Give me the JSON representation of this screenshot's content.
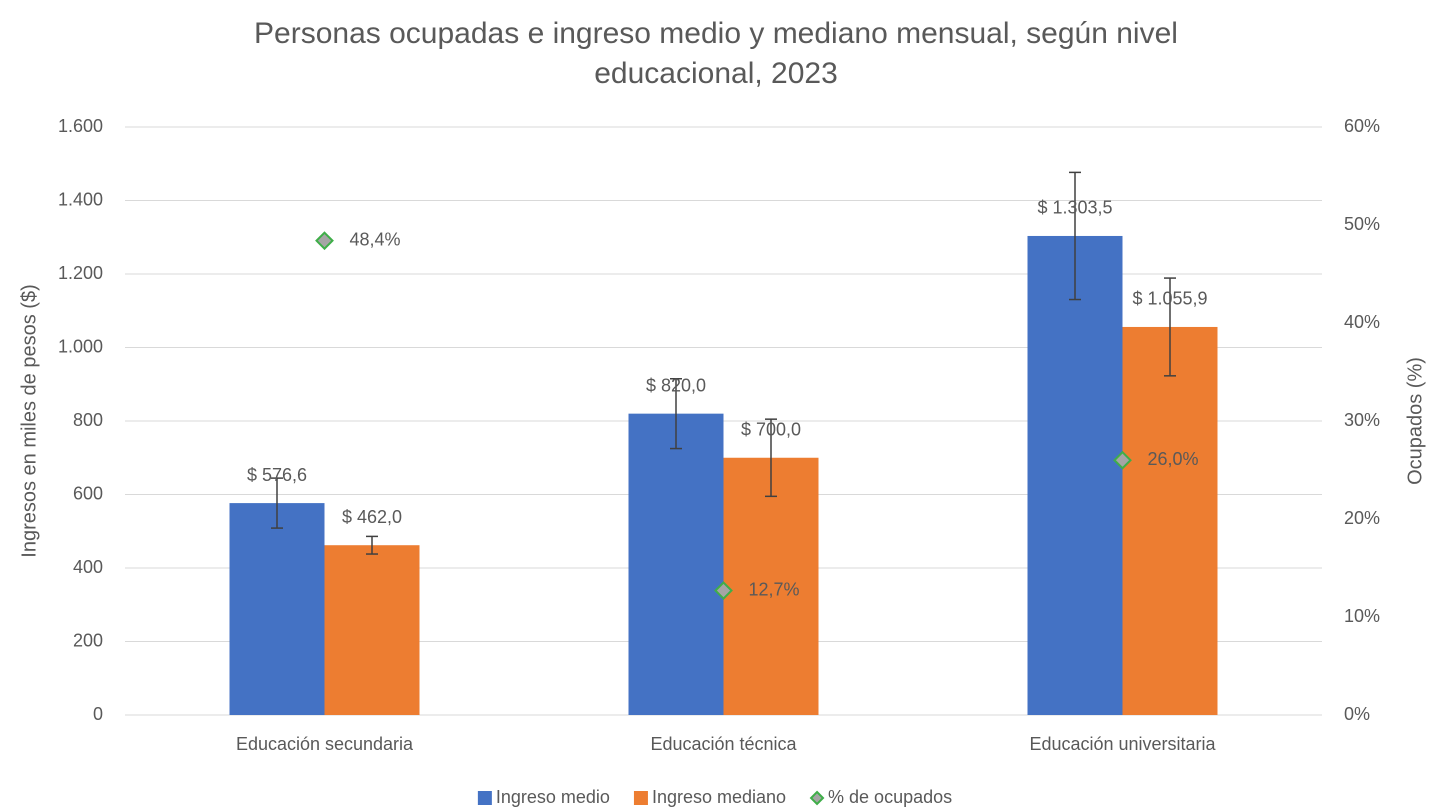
{
  "chart_data": {
    "type": "bar",
    "title": "Personas ocupadas e ingreso medio y mediano mensual, según nivel educacional, 2023",
    "ylabel": "Ingresos en miles de pesos ($)",
    "y2label": "Ocupados (%)",
    "categories": [
      "Educación secundaria",
      "Educación técnica",
      "Educación universitaria"
    ],
    "series": [
      {
        "name": "Ingreso medio",
        "color": "#4472c4",
        "values": [
          576.6,
          820.0,
          1303.5
        ],
        "value_labels": [
          "$ 576,6",
          "$ 820,0",
          "$ 1.303,5"
        ],
        "errors": [
          68,
          95,
          173
        ]
      },
      {
        "name": "Ingreso mediano",
        "color": "#ed7d31",
        "values": [
          462.0,
          700.0,
          1055.9
        ],
        "value_labels": [
          "$ 462,0",
          "$ 700,0",
          "$ 1.055,9"
        ],
        "errors": [
          24,
          105,
          133
        ]
      },
      {
        "name": "% de ocupados",
        "type": "scatter",
        "axis": "y2",
        "color": "#a5a5a5",
        "edgecolor": "#3fae49",
        "values": [
          48.4,
          12.7,
          26.0
        ],
        "value_labels": [
          "48,4%",
          "12,7%",
          "26,0%"
        ]
      }
    ],
    "ylim": [
      0,
      1600
    ],
    "yticks": [
      0,
      200,
      400,
      600,
      800,
      {
        "value": 1000,
        "label": "1.000"
      },
      {
        "value": 1200,
        "label": "1.200"
      },
      {
        "value": 1400,
        "label": "1.400"
      },
      {
        "value": 1600,
        "label": "1.600"
      }
    ],
    "y2lim": [
      0,
      60
    ],
    "y2ticks": [
      {
        "value": 0,
        "label": "0%"
      },
      {
        "value": 10,
        "label": "10%"
      },
      {
        "value": 20,
        "label": "20%"
      },
      {
        "value": 30,
        "label": "30%"
      },
      {
        "value": 40,
        "label": "40%"
      },
      {
        "value": 50,
        "label": "50%"
      },
      {
        "value": 60,
        "label": "60%"
      }
    ],
    "grid": true,
    "legend": "bottom"
  }
}
